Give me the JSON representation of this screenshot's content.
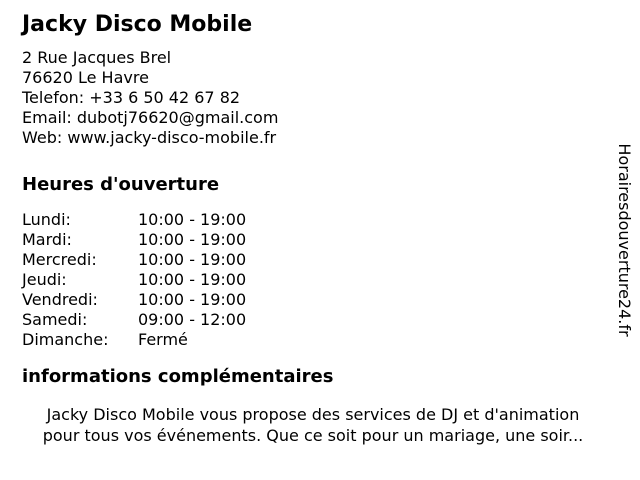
{
  "business": {
    "title": "Jacky Disco Mobile",
    "address_lines": [
      "2 Rue Jacques Brel",
      "76620 Le Havre"
    ],
    "phone_label": "Telefon:",
    "phone_value": "+33 6 50 42 67 82",
    "email_label": "Email:",
    "email_value": "dubotj76620@gmail.com",
    "web_label": "Web:",
    "web_value": "www.jacky-disco-mobile.fr"
  },
  "hours": {
    "heading": "Heures d'ouverture",
    "rows": [
      {
        "day": "Lundi:",
        "time": "10:00 - 19:00"
      },
      {
        "day": "Mardi:",
        "time": "10:00 - 19:00"
      },
      {
        "day": "Mercredi:",
        "time": "10:00 - 19:00"
      },
      {
        "day": "Jeudi:",
        "time": "10:00 - 19:00"
      },
      {
        "day": "Vendredi:",
        "time": "10:00 - 19:00"
      },
      {
        "day": "Samedi:",
        "time": "09:00 - 12:00"
      },
      {
        "day": "Dimanche:",
        "time": "Fermé"
      }
    ]
  },
  "info": {
    "heading": "informations complémentaires",
    "lines": [
      "Jacky Disco Mobile vous propose des services de DJ et d'animation",
      "pour tous vos événements. Que ce soit pour un mariage, une soir..."
    ]
  },
  "watermark": {
    "text": "Horairesdouverture24.fr"
  },
  "colors": {
    "text": "#000000",
    "background": "#ffffff"
  }
}
